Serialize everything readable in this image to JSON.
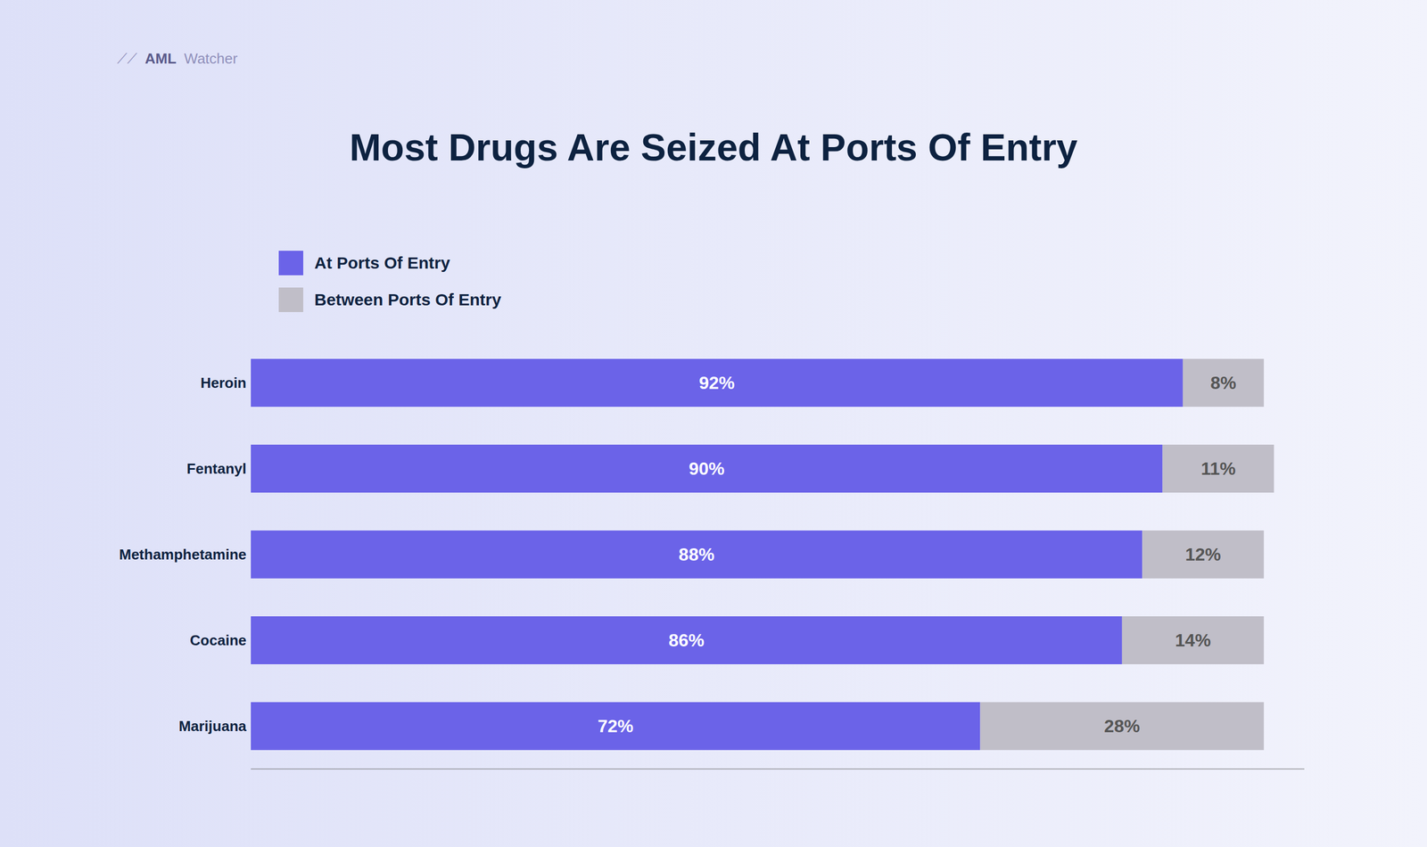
{
  "chart_data": {
    "type": "bar",
    "orientation": "horizontal",
    "stacked": true,
    "title": "Most Drugs Are Seized At Ports Of Entry",
    "annotations": [
      "⟋⟋",
      "AML",
      "Watcher"
    ],
    "categories": [
      "Marijuana",
      "Cocaine",
      "Methamphetamine",
      "Fentanyl",
      "Heroin"
    ],
    "series": [
      {
        "name": "At Ports Of Entry",
        "color": "#6B63E8",
        "values": [
          72,
          86,
          88,
          90,
          92
        ],
        "value_labels": [
          "72%",
          "86%",
          "88%",
          "90%",
          "92%"
        ]
      },
      {
        "name": "Between Ports Of Entry",
        "color": "#C0BEC8",
        "values": [
          28,
          14,
          12,
          11,
          8
        ],
        "value_labels": [
          "28%",
          "14%",
          "12%",
          "11%",
          "8%"
        ]
      }
    ],
    "xlim": [
      0,
      104
    ],
    "data_labels": true,
    "tick_labels": "y",
    "grid": false,
    "legend": "upper left"
  }
}
